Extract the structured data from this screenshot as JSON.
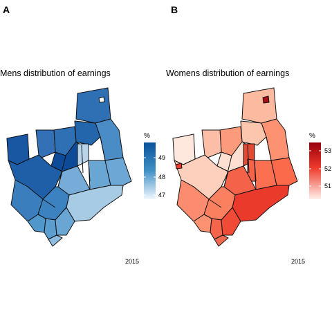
{
  "panel_a": {
    "tag": "A",
    "title": "Mens distribution of earnings",
    "caption": "2015",
    "legend": {
      "title": "%",
      "ticks": [
        "49",
        "48",
        "47"
      ],
      "color_high": "#08519c",
      "color_low": "#deebf7"
    }
  },
  "panel_b": {
    "tag": "B",
    "title": "Womens distribution of earnings",
    "caption": "2015",
    "legend": {
      "title": "%",
      "ticks": [
        "53",
        "52",
        "51"
      ],
      "color_high": "#99000d",
      "color_low": "#fee5d9"
    }
  }
}
